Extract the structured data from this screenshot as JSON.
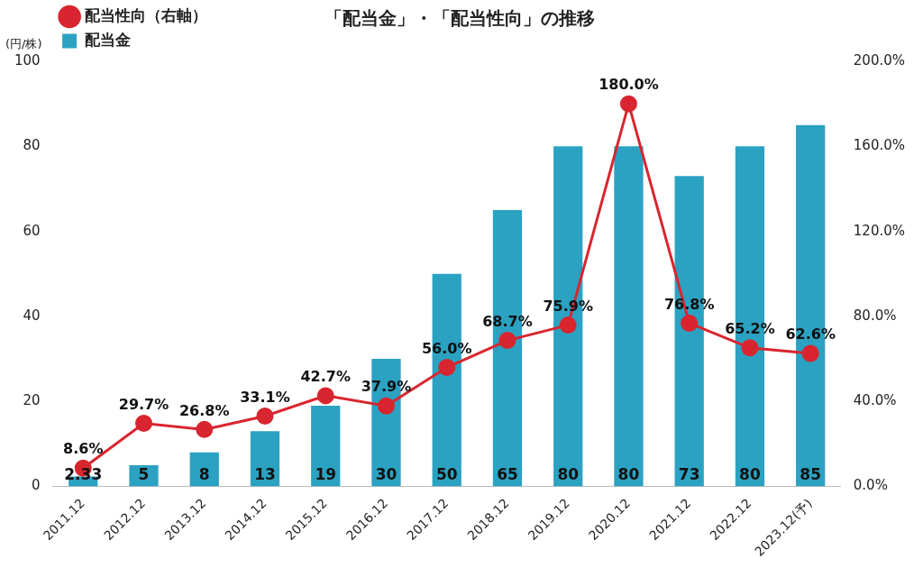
{
  "chart_data": {
    "type": "bar",
    "title": "「配当金」・「配当性向」の推移",
    "y_label": "(円/株)",
    "categories": [
      "2011.12",
      "2012.12",
      "2013.12",
      "2014.12",
      "2015.12",
      "2016.12",
      "2017.12",
      "2018.12",
      "2019.12",
      "2020.12",
      "2021.12",
      "2022.12",
      "2023.12(予)"
    ],
    "series": [
      {
        "name": "配当金",
        "type": "bar",
        "color": "#2ba2c2",
        "values": [
          2.33,
          5,
          8,
          13,
          19,
          30,
          50,
          65,
          80,
          80,
          73,
          80,
          85
        ]
      },
      {
        "name": "配当性向（右軸）",
        "type": "line",
        "axis": "y2",
        "color": "#d9252f",
        "marker": "circle",
        "line_style": "solid",
        "values": [
          8.6,
          29.7,
          26.8,
          33.1,
          42.7,
          37.9,
          56.0,
          68.7,
          75.9,
          180.0,
          76.8,
          65.2,
          62.6
        ],
        "value_labels": [
          "8.6%",
          "29.7%",
          "26.8%",
          "33.1%",
          "42.7%",
          "37.9%",
          "56.0%",
          "68.7%",
          "75.9%",
          "180.0%",
          "76.8%",
          "65.2%",
          "62.6%"
        ]
      }
    ],
    "ylim": [
      0,
      100
    ],
    "yticks": [
      0,
      20,
      40,
      60,
      80,
      100
    ],
    "y2lim": [
      0,
      200
    ],
    "y2ticks": [
      {
        "value": 0,
        "label": "0.0%"
      },
      {
        "value": 40,
        "label": "40.0%"
      },
      {
        "value": 80,
        "label": "80.0%"
      },
      {
        "value": 120,
        "label": "120.0%"
      },
      {
        "value": 160,
        "label": "160.0%"
      },
      {
        "value": 200,
        "label": "200.0%"
      }
    ],
    "grid": false,
    "legend": "upper left",
    "data_labels": true
  }
}
